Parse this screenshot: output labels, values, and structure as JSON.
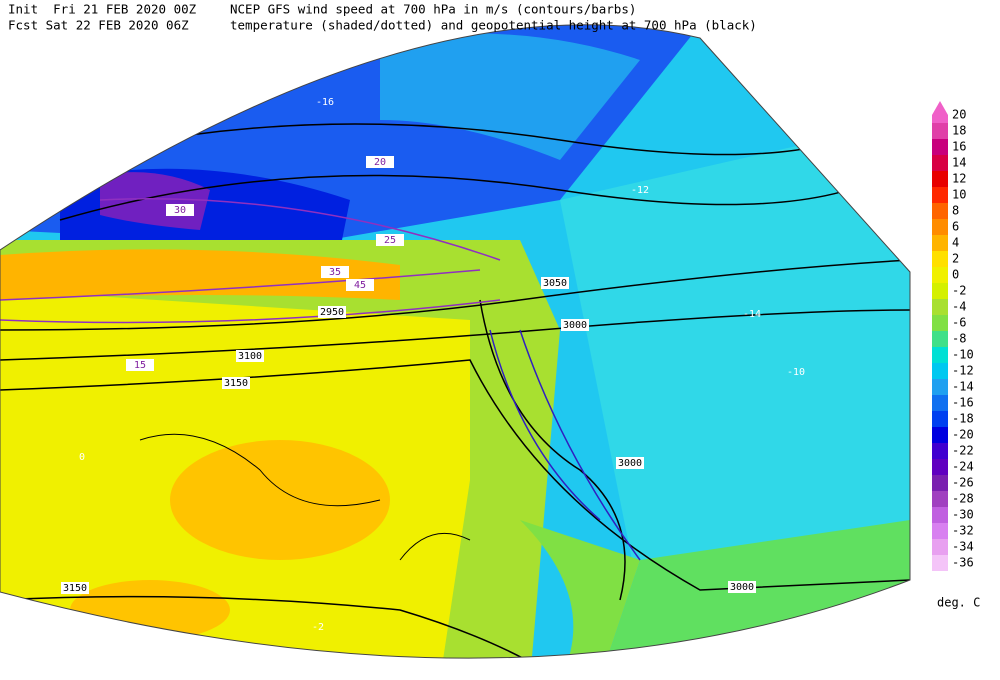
{
  "header": {
    "init": "Init  Fri 21 FEB 2020 00Z",
    "forecast": "Fcst Sat 22 FEB 2020 06Z",
    "title": "NCEP GFS wind speed at 700 hPa in m/s (contours/barbs)",
    "subtitle": "temperature (shaded/dotted) and geopotential height at 700 hPa (black)"
  },
  "colorbar": {
    "unit": "deg. C",
    "levels": [
      {
        "value": 20,
        "color": "#f060c8"
      },
      {
        "value": 18,
        "color": "#e040a8"
      },
      {
        "value": 16,
        "color": "#c8007c"
      },
      {
        "value": 14,
        "color": "#d80044"
      },
      {
        "value": 12,
        "color": "#e80000"
      },
      {
        "value": 10,
        "color": "#ff2800"
      },
      {
        "value": 8,
        "color": "#ff6400"
      },
      {
        "value": 6,
        "color": "#ff8c00"
      },
      {
        "value": 4,
        "color": "#ffb400"
      },
      {
        "value": 2,
        "color": "#ffe000"
      },
      {
        "value": 0,
        "color": "#f0f000"
      },
      {
        "value": -2,
        "color": "#d4f000"
      },
      {
        "value": -4,
        "color": "#a8e030"
      },
      {
        "value": -6,
        "color": "#80e044"
      },
      {
        "value": -8,
        "color": "#40e088"
      },
      {
        "value": -10,
        "color": "#00e0d4"
      },
      {
        "value": -12,
        "color": "#00c8f0"
      },
      {
        "value": -14,
        "color": "#20a0f0"
      },
      {
        "value": -16,
        "color": "#1070f0"
      },
      {
        "value": -18,
        "color": "#0040f0"
      },
      {
        "value": -20,
        "color": "#0000e0"
      },
      {
        "value": -22,
        "color": "#4000d0"
      },
      {
        "value": -24,
        "color": "#6000c0"
      },
      {
        "value": -26,
        "color": "#7a20b0"
      },
      {
        "value": -28,
        "color": "#a040c0"
      },
      {
        "value": -30,
        "color": "#c060e0"
      },
      {
        "value": -32,
        "color": "#d880f0"
      },
      {
        "value": -34,
        "color": "#e8a0f0"
      },
      {
        "value": -36,
        "color": "#f4c4f8"
      }
    ]
  },
  "map_labels": [
    "3150",
    "3000",
    "3000",
    "3000",
    "3100",
    "3150",
    "2950",
    "3050",
    "20",
    "15",
    "30",
    "25",
    "35",
    "45",
    "-16",
    "-12",
    "-14",
    "-10",
    "-2",
    "0"
  ]
}
